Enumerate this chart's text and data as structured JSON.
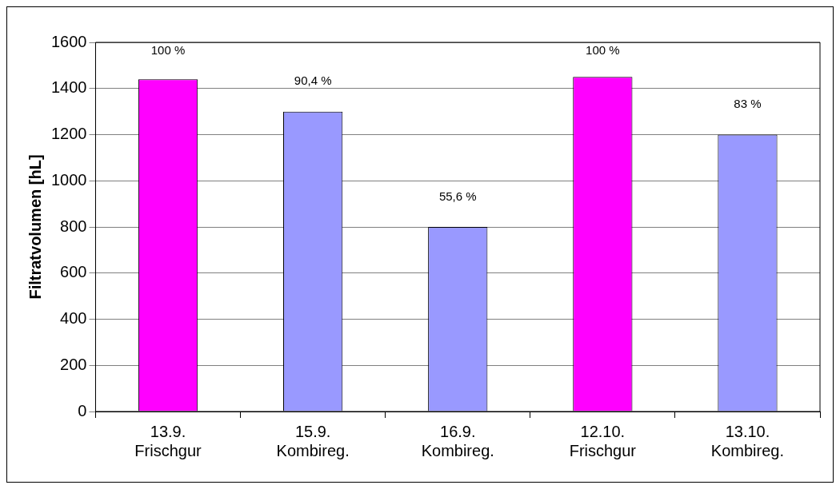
{
  "chart_data": {
    "type": "bar",
    "ylabel": "Filtratvolumen [hL]",
    "categories": [
      "13.9.\nFrischgur",
      "15.9.\nKombireg.",
      "16.9.\nKombireg.",
      "12.10.\nFrischgur",
      "13.10.\nKombireg."
    ],
    "values": [
      1440,
      1300,
      800,
      1450,
      1200
    ],
    "colors": [
      "#ff00ff",
      "#9999ff",
      "#9999ff",
      "#ff00ff",
      "#9999ff"
    ],
    "annotations": [
      {
        "text": "100 %",
        "x": "13.9.\nFrischgur",
        "y": 1440
      },
      {
        "text": "90,4 %",
        "x": "15.9.\nKombireg.",
        "y": 1300
      },
      {
        "text": "55,6 %",
        "x": "16.9.\nKombireg.",
        "y": 800
      },
      {
        "text": "100 %",
        "x": "12.10.\nFrischgur",
        "y": 1450
      },
      {
        "text": "83 %",
        "x": "13.10.\nKombireg.",
        "y": 1200
      }
    ],
    "ylim": [
      0,
      1600
    ],
    "yticks": [
      0,
      200,
      400,
      600,
      800,
      1000,
      1200,
      1400,
      1600
    ],
    "grid": "y",
    "legend": false
  }
}
